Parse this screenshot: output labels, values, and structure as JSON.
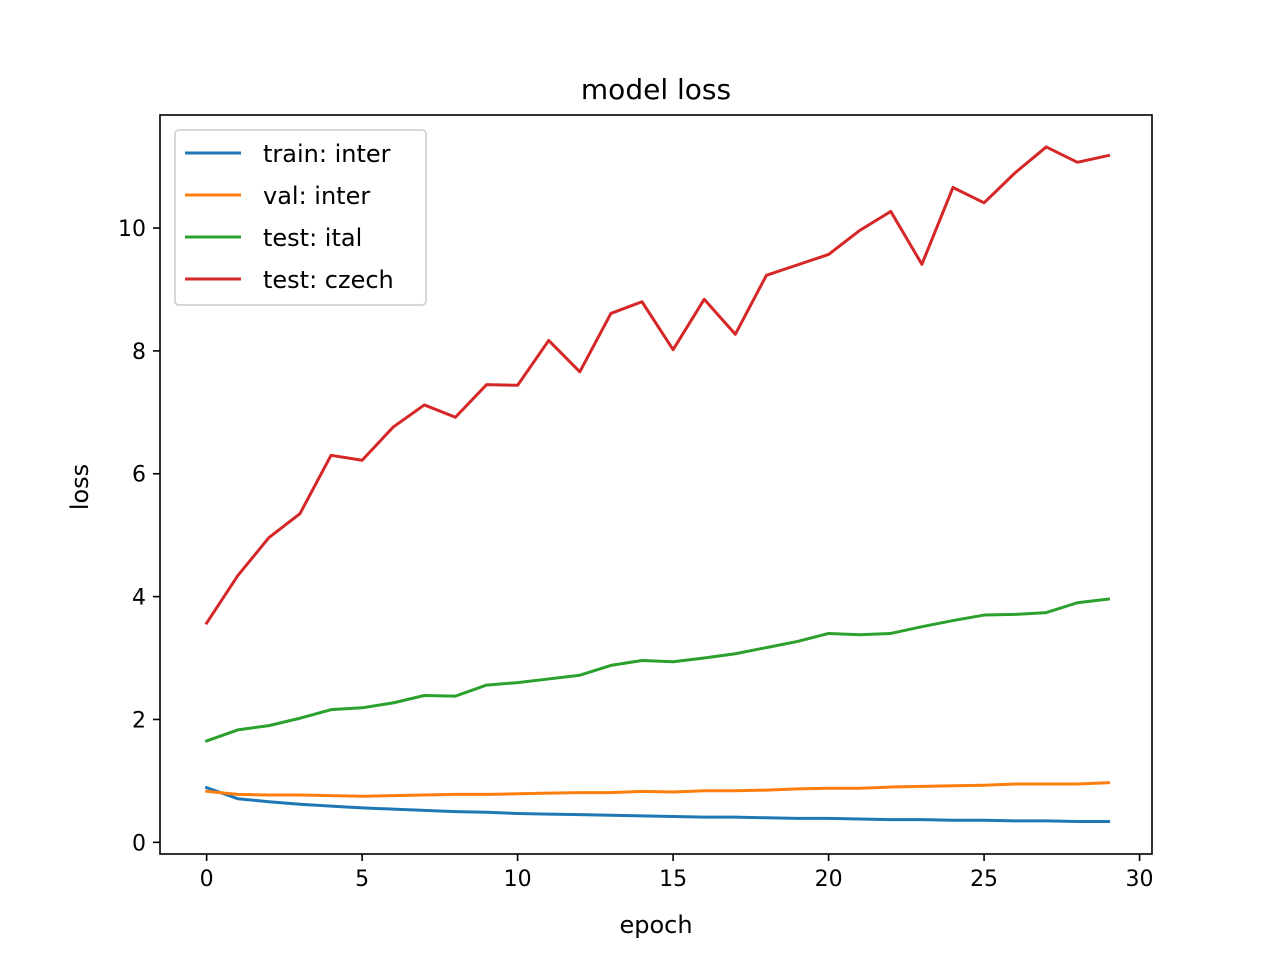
{
  "chart_data": {
    "type": "line",
    "title": "model loss",
    "xlabel": "epoch",
    "ylabel": "loss",
    "xlim": [
      -1.5,
      30.4
    ],
    "ylim": [
      -0.19,
      11.84
    ],
    "xticks": [
      0,
      5,
      10,
      15,
      20,
      25,
      30
    ],
    "yticks": [
      0,
      2,
      4,
      6,
      8,
      10
    ],
    "grid": false,
    "legend_position": "upper left",
    "x": [
      0,
      1,
      2,
      3,
      4,
      5,
      6,
      7,
      8,
      9,
      10,
      11,
      12,
      13,
      14,
      15,
      16,
      17,
      18,
      19,
      20,
      21,
      22,
      23,
      24,
      25,
      26,
      27,
      28,
      29
    ],
    "series": [
      {
        "name": "train: inter",
        "color": "#1f77b4",
        "values": [
          0.89,
          0.71,
          0.66,
          0.62,
          0.59,
          0.56,
          0.54,
          0.52,
          0.5,
          0.49,
          0.47,
          0.46,
          0.45,
          0.44,
          0.43,
          0.42,
          0.41,
          0.41,
          0.4,
          0.39,
          0.39,
          0.38,
          0.37,
          0.37,
          0.36,
          0.36,
          0.35,
          0.35,
          0.34,
          0.34
        ]
      },
      {
        "name": "val: inter",
        "color": "#ff7f0e",
        "values": [
          0.83,
          0.78,
          0.77,
          0.77,
          0.76,
          0.75,
          0.76,
          0.77,
          0.78,
          0.78,
          0.79,
          0.8,
          0.81,
          0.81,
          0.83,
          0.82,
          0.84,
          0.84,
          0.85,
          0.87,
          0.88,
          0.88,
          0.9,
          0.91,
          0.92,
          0.93,
          0.95,
          0.95,
          0.95,
          0.97
        ]
      },
      {
        "name": "test: ital",
        "color": "#2ca02c",
        "values": [
          1.65,
          1.83,
          1.9,
          2.02,
          2.16,
          2.19,
          2.27,
          2.39,
          2.38,
          2.56,
          2.6,
          2.66,
          2.72,
          2.88,
          2.96,
          2.94,
          3.0,
          3.07,
          3.17,
          3.27,
          3.4,
          3.38,
          3.4,
          3.51,
          3.61,
          3.7,
          3.71,
          3.74,
          3.9,
          3.96
        ]
      },
      {
        "name": "test: czech",
        "color": "#d62728",
        "values": [
          3.57,
          4.34,
          4.96,
          5.35,
          6.3,
          6.22,
          6.76,
          7.12,
          6.92,
          7.45,
          7.44,
          8.17,
          7.66,
          8.61,
          8.8,
          8.02,
          8.84,
          8.27,
          9.23,
          9.4,
          9.57,
          9.96,
          10.27,
          9.41,
          10.66,
          10.41,
          10.9,
          11.32,
          11.07,
          11.18
        ]
      }
    ]
  }
}
